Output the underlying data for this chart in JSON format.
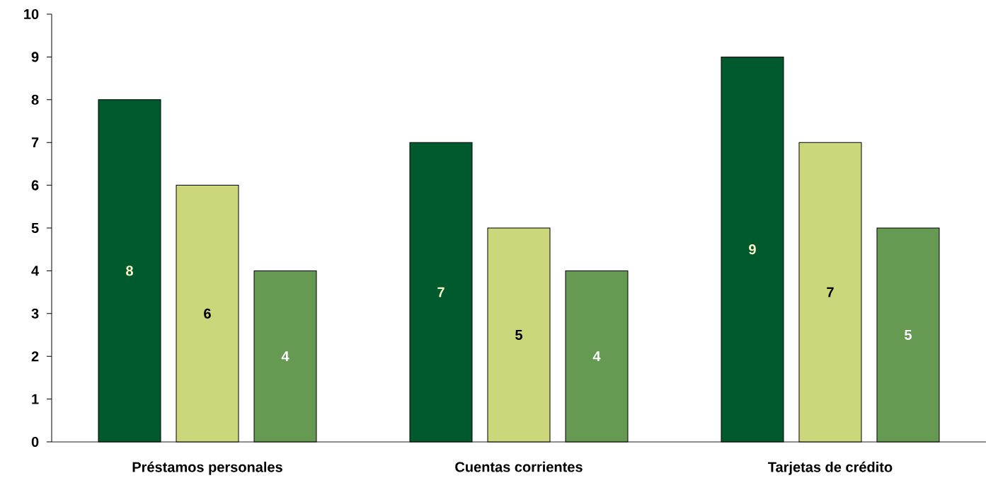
{
  "chart_data": {
    "type": "bar",
    "categories": [
      "Préstamos personales",
      "Cuentas corrientes",
      "Tarjetas de crédito"
    ],
    "series": [
      {
        "color": "#005a2e",
        "values": [
          8,
          7,
          9
        ]
      },
      {
        "color": "#ccd67a",
        "values": [
          6,
          5,
          7
        ]
      },
      {
        "color": "#669a52",
        "values": [
          4,
          4,
          5
        ]
      }
    ],
    "ylim": [
      0,
      10
    ],
    "yticks": [
      0,
      1,
      2,
      3,
      4,
      5,
      6,
      7,
      8,
      9,
      10
    ],
    "data_labels": true
  }
}
